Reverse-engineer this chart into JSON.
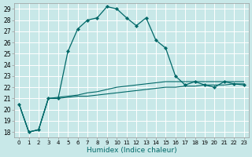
{
  "xlabel": "Humidex (Indice chaleur)",
  "bg_color": "#c8e8e8",
  "grid_color": "#ffffff",
  "line_color": "#006868",
  "xlim": [
    -0.5,
    23.5
  ],
  "ylim": [
    17.5,
    29.5
  ],
  "yticks": [
    18,
    19,
    20,
    21,
    22,
    23,
    24,
    25,
    26,
    27,
    28,
    29
  ],
  "xticks": [
    0,
    1,
    2,
    3,
    4,
    5,
    6,
    7,
    8,
    9,
    10,
    11,
    12,
    13,
    14,
    15,
    16,
    17,
    18,
    19,
    20,
    21,
    22,
    23
  ],
  "xtick_labels": [
    "0",
    "1",
    "2",
    "3",
    "4",
    "5",
    "6",
    "7",
    "8",
    "9",
    "10",
    "11",
    "12",
    "13",
    "14",
    "15",
    "16",
    "17",
    "18",
    "19",
    "20",
    "21",
    "22",
    "23"
  ],
  "series_main": {
    "x": [
      0,
      1,
      2,
      3,
      4,
      5,
      6,
      7,
      8,
      9,
      10,
      11,
      12,
      13,
      14,
      15,
      16,
      17,
      18,
      19,
      20,
      21,
      22,
      23
    ],
    "y": [
      20.5,
      18.0,
      18.2,
      21.0,
      21.0,
      25.2,
      27.2,
      28.0,
      28.2,
      29.2,
      29.0,
      28.2,
      27.5,
      28.2,
      26.2,
      25.5,
      23.0,
      22.2,
      22.5,
      22.2,
      22.0,
      22.5,
      22.3,
      22.2
    ]
  },
  "series_line1": {
    "x": [
      0,
      1,
      2,
      3,
      4,
      5,
      6,
      7,
      8,
      9,
      10,
      11,
      12,
      13,
      14,
      15,
      16,
      17,
      18,
      19,
      20,
      21,
      22,
      23
    ],
    "y": [
      20.5,
      18.0,
      18.2,
      21.0,
      21.1,
      21.2,
      21.3,
      21.5,
      21.6,
      21.8,
      22.0,
      22.1,
      22.2,
      22.3,
      22.4,
      22.5,
      22.5,
      22.5,
      22.5,
      22.5,
      22.5,
      22.5,
      22.5,
      22.5
    ]
  },
  "series_line2": {
    "x": [
      0,
      1,
      2,
      3,
      4,
      5,
      6,
      7,
      8,
      9,
      10,
      11,
      12,
      13,
      14,
      15,
      16,
      17,
      18,
      19,
      20,
      21,
      22,
      23
    ],
    "y": [
      20.5,
      18.0,
      18.2,
      21.0,
      21.0,
      21.1,
      21.2,
      21.2,
      21.3,
      21.4,
      21.5,
      21.6,
      21.7,
      21.8,
      21.9,
      22.0,
      22.0,
      22.1,
      22.1,
      22.2,
      22.2,
      22.2,
      22.3,
      22.3
    ]
  }
}
